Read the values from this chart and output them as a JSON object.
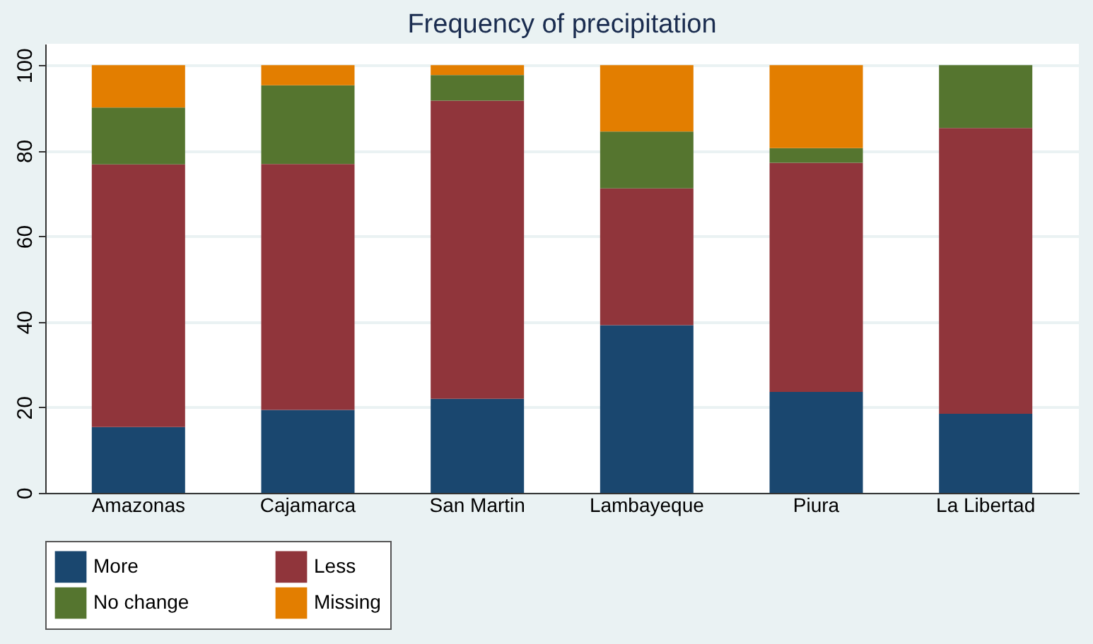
{
  "chart_data": {
    "type": "bar",
    "title": "Frequency of precipitation",
    "stacked": true,
    "categories": [
      "Amazonas",
      "Cajamarca",
      "San Martin",
      "Lambayeque",
      "Piura",
      "La Libertad"
    ],
    "series": [
      {
        "name": "More",
        "color": "#1a476f",
        "values": [
          15.4,
          19.4,
          22.0,
          39.2,
          23.6,
          18.5
        ]
      },
      {
        "name": "Less",
        "color": "#90353b",
        "values": [
          61.4,
          57.5,
          69.7,
          32.0,
          53.6,
          66.8
        ]
      },
      {
        "name": "No change",
        "color": "#55752f",
        "values": [
          13.3,
          18.4,
          6.0,
          13.3,
          3.4,
          14.7
        ]
      },
      {
        "name": "Missing",
        "color": "#e37e00",
        "values": [
          9.9,
          4.7,
          2.3,
          15.5,
          19.4,
          0
        ]
      }
    ],
    "ylim": [
      0,
      105
    ],
    "yticks": [
      0,
      20,
      40,
      60,
      80,
      100
    ],
    "grid": "y",
    "legend": "bottom"
  }
}
